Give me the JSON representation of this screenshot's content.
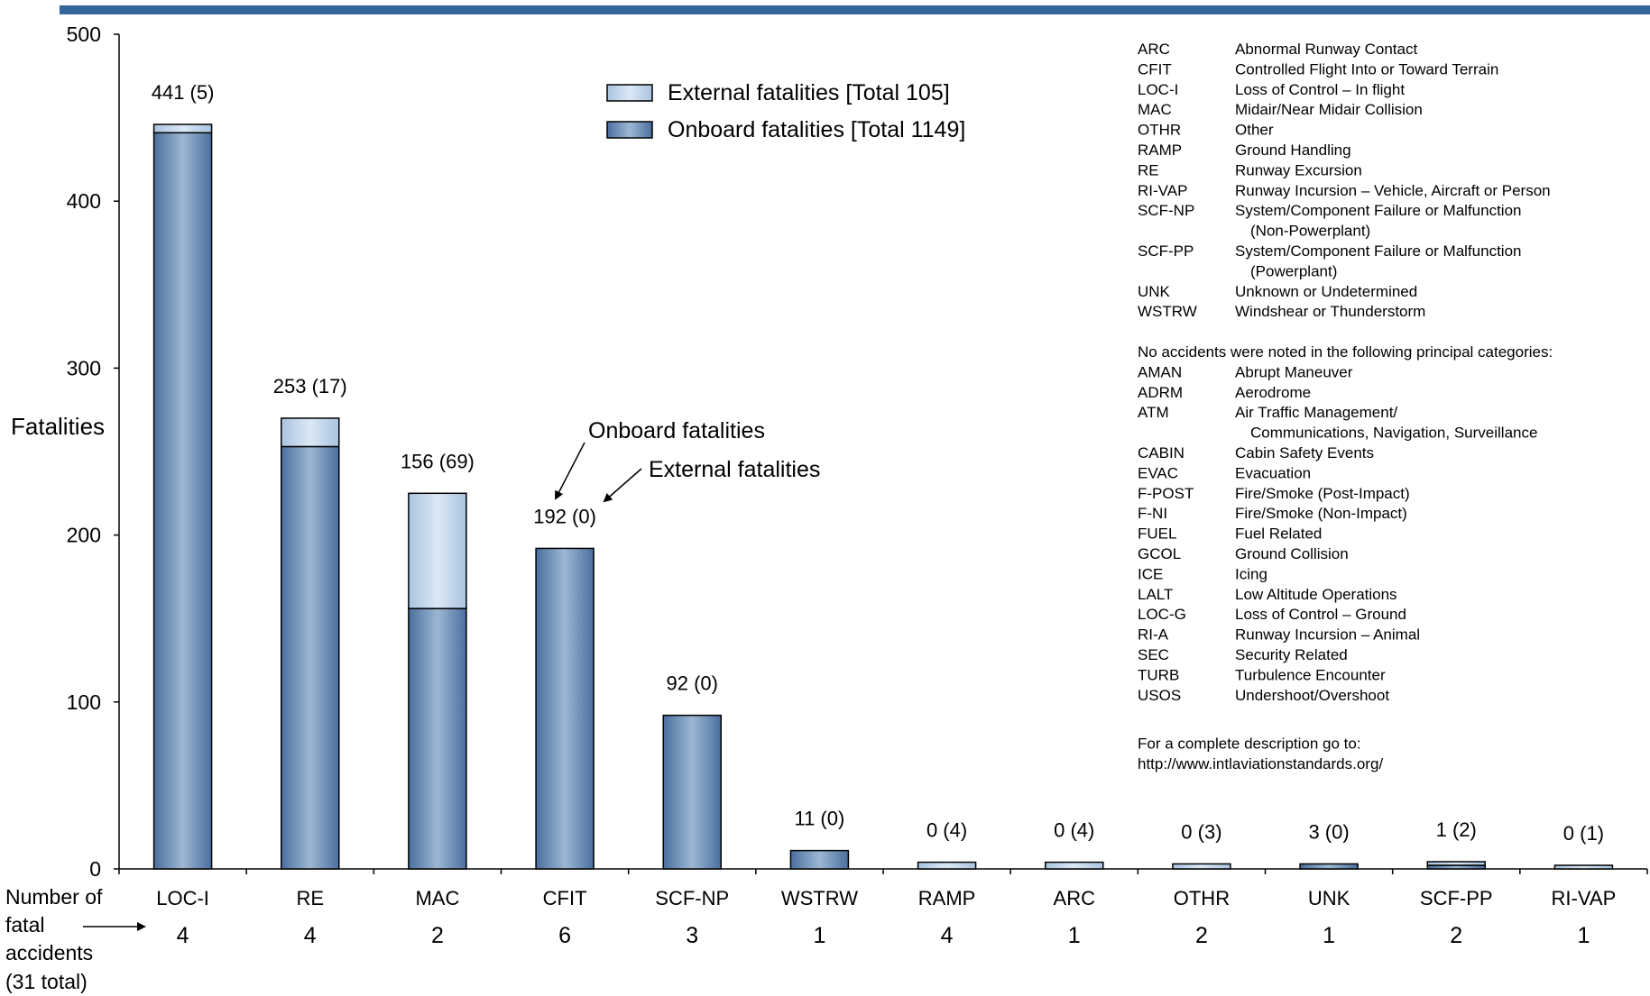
{
  "colors": {
    "accent_bar": "#336699",
    "onboard_dark": "#4a6f9e",
    "onboard_light": "#9db7d3",
    "external_light": "#c5d9ee",
    "external_dark": "#a9c3e0"
  },
  "chart_data": {
    "type": "bar",
    "stacked": true,
    "ylabel": "Fatalities",
    "ylim": [
      0,
      500
    ],
    "yticks": [
      0,
      100,
      200,
      300,
      400,
      500
    ],
    "categories": [
      "LOC-I",
      "RE",
      "MAC",
      "CFIT",
      "SCF-NP",
      "WSTRW",
      "RAMP",
      "ARC",
      "OTHR",
      "UNK",
      "SCF-PP",
      "RI-VAP"
    ],
    "series": [
      {
        "name": "Onboard fatalities [Total 1149]",
        "values": [
          441,
          253,
          156,
          192,
          92,
          11,
          0,
          0,
          0,
          3,
          1,
          0
        ]
      },
      {
        "name": "External fatalities [Total 105]",
        "values": [
          5,
          17,
          69,
          0,
          0,
          0,
          4,
          4,
          3,
          0,
          2,
          1
        ]
      }
    ],
    "data_labels": [
      "441 (5)",
      "253 (17)",
      "156 (69)",
      "192 (0)",
      "92 (0)",
      "11 (0)",
      "0 (4)",
      "0 (4)",
      "0 (3)",
      "3 (0)",
      "1 (2)",
      "0 (1)"
    ],
    "fatal_accidents": {
      "label_lines": [
        "Number of",
        "fatal",
        "accidents",
        "(31 total)"
      ],
      "counts": [
        4,
        4,
        2,
        6,
        3,
        1,
        4,
        1,
        2,
        1,
        2,
        1
      ]
    },
    "legend_placement": "top-center",
    "annotations": {
      "onboard": "Onboard fatalities",
      "external": "External fatalities"
    }
  },
  "glossary": {
    "categories": [
      {
        "code": "ARC",
        "desc": [
          "Abnormal Runway Contact"
        ]
      },
      {
        "code": "CFIT",
        "desc": [
          "Controlled Flight Into or Toward Terrain"
        ]
      },
      {
        "code": "LOC-I",
        "desc": [
          "Loss of Control – In flight"
        ]
      },
      {
        "code": "MAC",
        "desc": [
          "Midair/Near Midair Collision"
        ]
      },
      {
        "code": "OTHR",
        "desc": [
          "Other"
        ]
      },
      {
        "code": "RAMP",
        "desc": [
          "Ground Handling"
        ]
      },
      {
        "code": "RE",
        "desc": [
          "Runway Excursion"
        ]
      },
      {
        "code": "RI-VAP",
        "desc": [
          "Runway Incursion – Vehicle, Aircraft or Person"
        ]
      },
      {
        "code": "SCF-NP",
        "desc": [
          "System/Component Failure or  Malfunction",
          "(Non-Powerplant)"
        ]
      },
      {
        "code": "SCF-PP",
        "desc": [
          "System/Component Failure or Malfunction",
          "(Powerplant)"
        ]
      },
      {
        "code": "UNK",
        "desc": [
          "Unknown or Undetermined"
        ]
      },
      {
        "code": "WSTRW",
        "desc": [
          "Windshear or Thunderstorm"
        ]
      }
    ],
    "no_accidents_heading": "No accidents were noted in the following principal categories:",
    "no_accidents": [
      {
        "code": "AMAN",
        "desc": [
          "Abrupt Maneuver"
        ]
      },
      {
        "code": "ADRM",
        "desc": [
          "Aerodrome"
        ]
      },
      {
        "code": "ATM",
        "desc": [
          "Air Traffic Management/",
          "Communications, Navigation, Surveillance"
        ]
      },
      {
        "code": "CABIN",
        "desc": [
          "Cabin Safety Events"
        ]
      },
      {
        "code": "EVAC",
        "desc": [
          "Evacuation"
        ]
      },
      {
        "code": "F-POST",
        "desc": [
          "Fire/Smoke (Post-Impact)"
        ]
      },
      {
        "code": "F-NI",
        "desc": [
          "Fire/Smoke (Non-Impact)"
        ]
      },
      {
        "code": "FUEL",
        "desc": [
          "Fuel Related"
        ]
      },
      {
        "code": "GCOL",
        "desc": [
          "Ground Collision"
        ]
      },
      {
        "code": "ICE",
        "desc": [
          "Icing"
        ]
      },
      {
        "code": "LALT",
        "desc": [
          "Low Altitude Operations"
        ]
      },
      {
        "code": "LOC-G",
        "desc": [
          "Loss of Control – Ground"
        ]
      },
      {
        "code": "RI-A",
        "desc": [
          "Runway Incursion – Animal"
        ]
      },
      {
        "code": "SEC",
        "desc": [
          "Security Related"
        ]
      },
      {
        "code": "TURB",
        "desc": [
          "Turbulence Encounter"
        ]
      },
      {
        "code": "USOS",
        "desc": [
          "Undershoot/Overshoot"
        ]
      }
    ],
    "footer": [
      "For a complete description go to:",
      "http://www.intlaviationstandards.org/"
    ]
  }
}
